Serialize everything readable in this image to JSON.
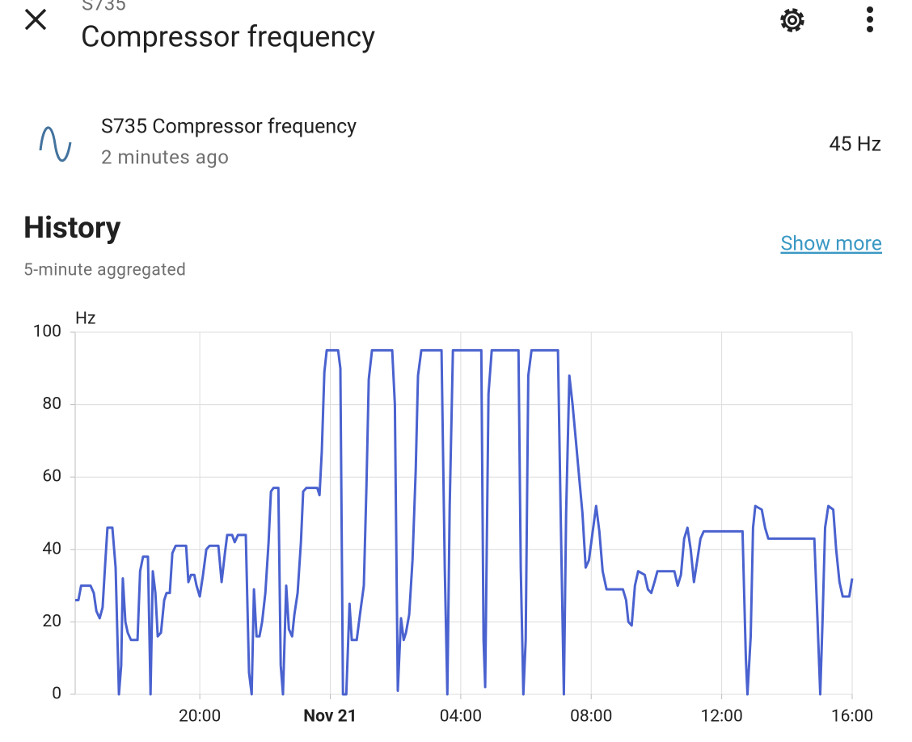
{
  "header": {
    "subtitle": "S735",
    "title": "Compressor frequency"
  },
  "entity": {
    "name": "S735 Compressor frequency",
    "last_changed": "2 minutes ago",
    "state": "45 Hz"
  },
  "history": {
    "title": "History",
    "link": "Show more",
    "note": "5-minute aggregated"
  },
  "chart_data": {
    "type": "line",
    "y_label": "Hz",
    "color": "#4a62cf",
    "grid": true,
    "xlim": [
      16.18,
      40
    ],
    "ylim": [
      0,
      100
    ],
    "yticks": [
      0,
      20,
      40,
      60,
      80,
      100
    ],
    "xticks": [
      {
        "value": 20,
        "label": "20:00"
      },
      {
        "value": 24,
        "label": "Nov 21"
      },
      {
        "value": 28,
        "label": "04:00"
      },
      {
        "value": 32,
        "label": "08:00"
      },
      {
        "value": 36,
        "label": "12:00"
      },
      {
        "value": 40,
        "label": "16:00"
      }
    ],
    "x": [
      16.18,
      16.28,
      16.36,
      16.65,
      16.75,
      16.83,
      16.93,
      17.02,
      17.1,
      17.17,
      17.32,
      17.42,
      17.52,
      17.59,
      17.64,
      17.72,
      17.79,
      17.89,
      18.09,
      18.17,
      18.26,
      18.41,
      18.49,
      18.56,
      18.64,
      18.71,
      18.81,
      18.91,
      18.98,
      19.08,
      19.16,
      19.26,
      19.58,
      19.65,
      19.73,
      19.83,
      19.9,
      20.0,
      20.1,
      20.2,
      20.3,
      20.57,
      20.67,
      20.77,
      20.84,
      20.99,
      21.07,
      21.17,
      21.41,
      21.51,
      21.59,
      21.66,
      21.74,
      21.83,
      21.91,
      22.01,
      22.11,
      22.18,
      22.26,
      22.41,
      22.48,
      22.55,
      22.65,
      22.73,
      22.83,
      22.9,
      23.0,
      23.1,
      23.17,
      23.27,
      23.6,
      23.67,
      23.74,
      23.82,
      23.89,
      24.24,
      24.31,
      24.39,
      24.49,
      24.59,
      24.66,
      24.81,
      24.91,
      25.03,
      25.11,
      25.18,
      25.28,
      25.9,
      25.98,
      26.07,
      26.17,
      26.25,
      26.32,
      26.42,
      26.52,
      26.62,
      26.69,
      26.79,
      27.41,
      27.51,
      27.59,
      27.66,
      27.76,
      28.63,
      28.7,
      28.75,
      28.85,
      28.95,
      29.77,
      29.84,
      29.92,
      29.99,
      30.07,
      30.17,
      30.98,
      31.06,
      31.16,
      31.23,
      31.33,
      31.43,
      31.53,
      31.63,
      31.73,
      31.83,
      31.93,
      32.03,
      32.15,
      32.25,
      32.35,
      32.47,
      32.97,
      33.07,
      33.14,
      33.24,
      33.34,
      33.44,
      33.64,
      33.74,
      33.84,
      33.94,
      34.03,
      34.55,
      34.65,
      34.75,
      34.85,
      34.95,
      35.05,
      35.15,
      35.25,
      35.35,
      35.45,
      36.64,
      36.74,
      36.79,
      36.89,
      36.96,
      37.03,
      37.23,
      37.33,
      37.43,
      38.84,
      38.94,
      39.02,
      39.09,
      39.17,
      39.27,
      39.42,
      39.51,
      39.61,
      39.71,
      39.91,
      40.0
    ],
    "values": [
      26,
      26,
      30,
      30,
      28,
      23,
      21,
      24,
      36,
      46,
      46,
      35,
      0,
      8,
      32,
      20,
      17,
      15,
      15,
      34,
      38,
      38,
      0,
      34,
      28,
      16,
      17,
      26,
      28,
      28,
      39,
      41,
      41,
      31,
      33,
      33,
      30,
      27,
      33,
      40,
      41,
      41,
      31,
      39,
      44,
      44,
      42,
      44,
      44,
      6,
      0,
      29,
      16,
      16,
      20,
      28,
      42,
      56,
      57,
      57,
      8,
      0,
      30,
      18,
      16,
      22,
      28,
      42,
      56,
      57,
      57,
      55,
      67,
      89,
      95,
      95,
      90,
      0,
      0,
      25,
      15,
      15,
      22,
      30,
      58,
      87,
      95,
      95,
      80,
      1,
      21,
      15,
      17,
      22,
      37,
      62,
      88,
      95,
      95,
      35,
      0,
      52,
      95,
      95,
      15,
      2,
      83,
      95,
      95,
      35,
      0,
      15,
      88,
      95,
      95,
      52,
      0,
      50,
      88,
      80,
      70,
      60,
      50,
      35,
      37,
      44,
      52,
      45,
      34,
      29,
      29,
      26,
      20,
      19,
      30,
      34,
      33,
      29,
      28,
      31,
      34,
      34,
      30,
      33,
      43,
      46,
      40,
      31,
      37,
      43,
      45,
      45,
      10,
      0,
      16,
      46,
      52,
      51,
      46,
      43,
      43,
      20,
      0,
      20,
      46,
      52,
      51,
      40,
      31,
      27,
      27,
      32
    ]
  }
}
